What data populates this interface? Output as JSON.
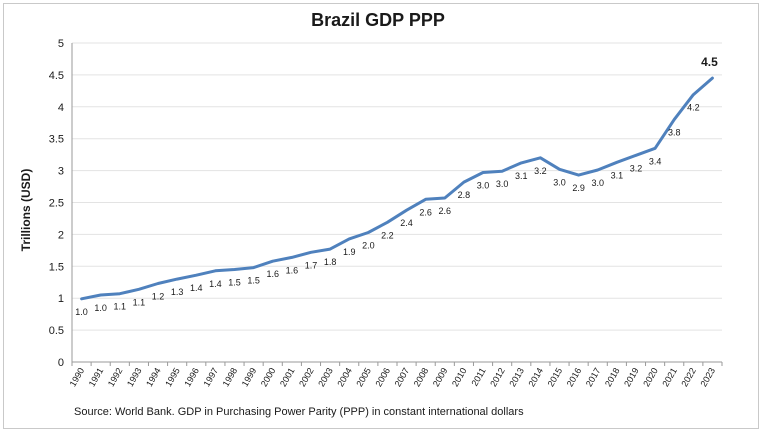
{
  "chart_data": {
    "type": "line",
    "title": "Brazil GDP PPP",
    "ylabel": "Trillions (USD)",
    "xlabel": "",
    "ylim": [
      0,
      5
    ],
    "yticks": [
      "0",
      "0.5",
      "1",
      "1.5",
      "2",
      "2.5",
      "3",
      "3.5",
      "4",
      "4.5",
      "5"
    ],
    "grid": true,
    "x": [
      "1990",
      "1991",
      "1992",
      "1993",
      "1994",
      "1995",
      "1996",
      "1997",
      "1998",
      "1999",
      "2000",
      "2001",
      "2002",
      "2003",
      "2004",
      "2005",
      "2006",
      "2007",
      "2008",
      "2009",
      "2010",
      "2011",
      "2012",
      "2013",
      "2014",
      "2015",
      "2016",
      "2017",
      "2018",
      "2019",
      "2020",
      "2021",
      "2022",
      "2023"
    ],
    "values": [
      0.99,
      1.05,
      1.07,
      1.14,
      1.23,
      1.3,
      1.36,
      1.43,
      1.45,
      1.48,
      1.58,
      1.64,
      1.72,
      1.77,
      1.93,
      2.03,
      2.19,
      2.38,
      2.55,
      2.57,
      2.82,
      2.97,
      2.99,
      3.12,
      3.2,
      3.02,
      2.93,
      3.01,
      3.13,
      3.24,
      3.35,
      3.8,
      4.19,
      4.45
    ],
    "data_labels": [
      "1.0",
      "1.0",
      "1.1",
      "1.1",
      "1.2",
      "1.3",
      "1.4",
      "1.4",
      "1.5",
      "1.5",
      "1.6",
      "1.6",
      "1.7",
      "1.8",
      "1.9",
      "2.0",
      "2.2",
      "2.4",
      "2.6",
      "2.6",
      "2.8",
      "3.0",
      "3.0",
      "3.1",
      "3.2",
      "3.0",
      "2.9",
      "3.0",
      "3.1",
      "3.2",
      "3.4",
      "3.8",
      "4.2",
      "4.5"
    ],
    "line_color": "#4f81bd",
    "source": "Source: World Bank. GDP in Purchasing Power Parity (PPP) in constant international dollars"
  }
}
